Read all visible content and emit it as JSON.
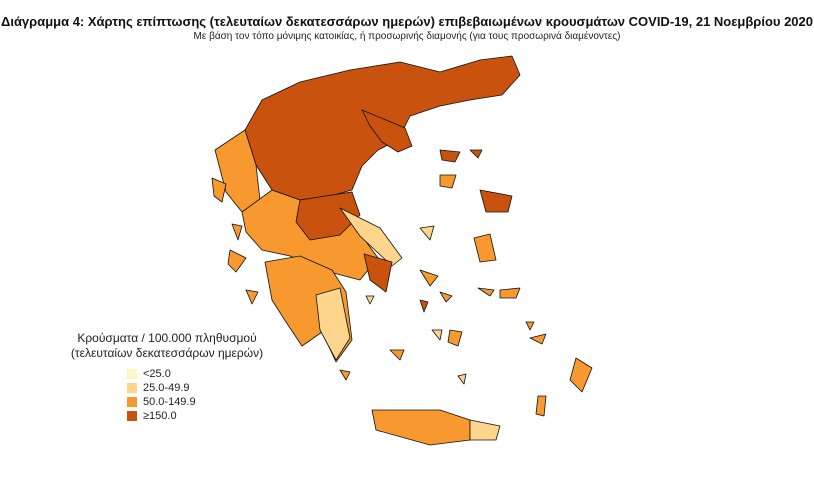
{
  "title": "Διάγραμμα 4: Χάρτης επίπτωσης (τελευταίων δεκατεσσάρων ημερών) επιβεβαιωμένων κρουσμάτων COVID-19, 21 Νοεμβρίου 2020",
  "subtitle": "Με βάση τον τόπο μόνιμης κατοικίας, ή προσωρινής διαμονής (για τους προσωρινά διαμένοντες)",
  "legend": {
    "title_line1": "Κρούσματα / 100.000 πληθυσμού",
    "title_line2": "(τελευταίων δεκατεσσάρων ημερών)",
    "classes": [
      {
        "label": "<25.0",
        "color": "#fff6c8"
      },
      {
        "label": "25.0-49.9",
        "color": "#fdd58c"
      },
      {
        "label": "50.0-149.9",
        "color": "#f7992e"
      },
      {
        "label": "≥150.0",
        "color": "#c9520f"
      }
    ]
  }
}
